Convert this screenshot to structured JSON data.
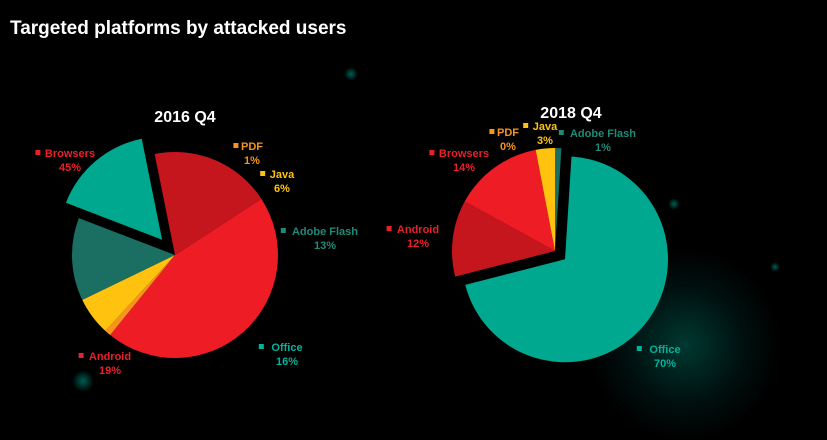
{
  "page": {
    "title": "Targeted platforms by attacked users"
  },
  "colors": {
    "Browsers": "#ee1c24",
    "PDF": "#f7941d",
    "Java": "#ffc20e",
    "Adobe Flash": "#1a6e62",
    "Office": "#00a88f",
    "Android": "#c4161c",
    "label_Browsers": "#e8202a",
    "label_PDF": "#f7941d",
    "label_Java": "#ffc20e",
    "label_Adobe Flash": "#1f8a78",
    "label_Office": "#00b39a",
    "label_Android": "#e8202a"
  },
  "chart_data": [
    {
      "type": "pie",
      "title": "2016 Q4",
      "categories": [
        "Browsers",
        "PDF",
        "Java",
        "Adobe Flash",
        "Office",
        "Android"
      ],
      "values": [
        45,
        1,
        6,
        13,
        16,
        19
      ],
      "value_labels": [
        "45%",
        "1%",
        "6%",
        "13%",
        "16%",
        "19%"
      ],
      "exploded": "Office"
    },
    {
      "type": "pie",
      "title": "2018 Q4",
      "categories": [
        "Adobe Flash",
        "Office",
        "Android",
        "Browsers",
        "PDF",
        "Java"
      ],
      "values": [
        1,
        70,
        12,
        14,
        0,
        3
      ],
      "value_labels": [
        "1%",
        "70%",
        "12%",
        "14%",
        "0%",
        "3%"
      ],
      "exploded": "Office"
    }
  ]
}
